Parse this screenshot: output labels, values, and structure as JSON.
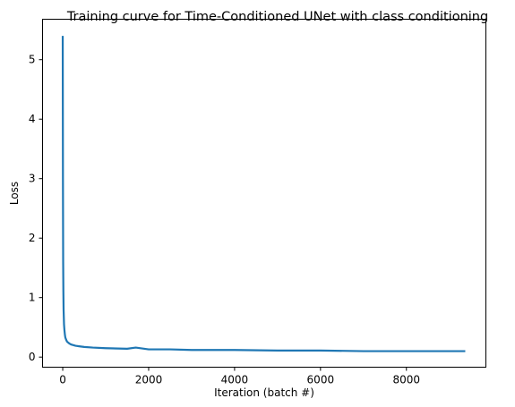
{
  "chart_data": {
    "type": "line",
    "title": "Training curve for Time-Conditioned UNet with class conditioning",
    "xlabel": "Iteration (batch #)",
    "ylabel": "Loss",
    "xlim": [
      -470,
      9850
    ],
    "ylim": [
      -0.17,
      5.68
    ],
    "xticks": [
      0,
      2000,
      4000,
      6000,
      8000
    ],
    "yticks": [
      0,
      1,
      2,
      3,
      4,
      5
    ],
    "grid": false,
    "legend": "none",
    "series": [
      {
        "color": "#1f77b4",
        "x": [
          0,
          5,
          10,
          15,
          20,
          30,
          40,
          50,
          60,
          80,
          100,
          150,
          200,
          300,
          400,
          500,
          700,
          1000,
          1500,
          1700,
          2000,
          2500,
          3000,
          4000,
          5000,
          6000,
          7000,
          8000,
          9000,
          9370
        ],
        "y": [
          5.4,
          3.0,
          1.6,
          1.1,
          0.8,
          0.55,
          0.45,
          0.38,
          0.33,
          0.29,
          0.26,
          0.23,
          0.21,
          0.19,
          0.18,
          0.17,
          0.16,
          0.15,
          0.14,
          0.16,
          0.13,
          0.13,
          0.12,
          0.12,
          0.11,
          0.11,
          0.1,
          0.1,
          0.1,
          0.1
        ]
      }
    ]
  }
}
